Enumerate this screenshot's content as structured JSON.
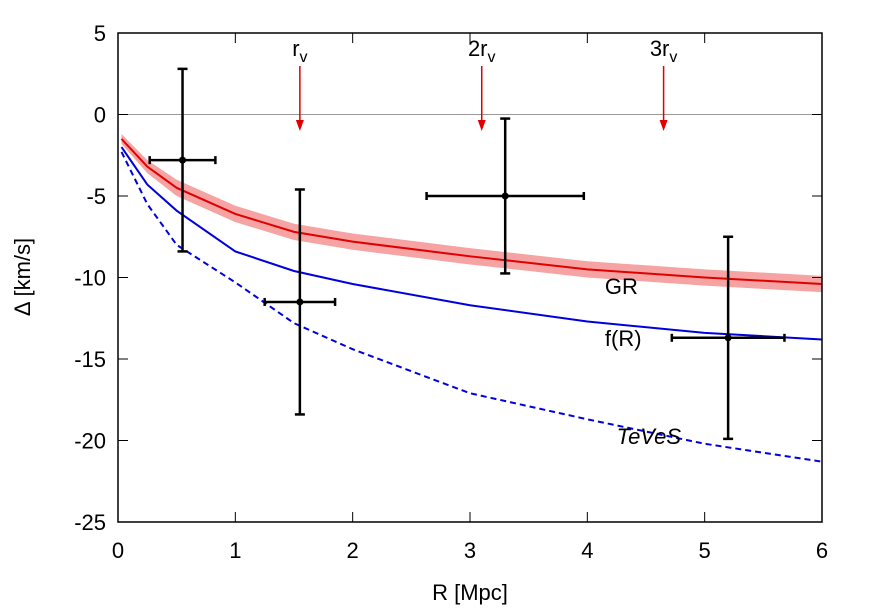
{
  "chart_data": {
    "type": "line",
    "xlabel": "R [Mpc]",
    "ylabel": "Δ [km/s]",
    "xlim": [
      0,
      6
    ],
    "xticks": [
      0,
      1,
      2,
      3,
      4,
      5,
      6
    ],
    "ylim": [
      -25,
      5
    ],
    "yticks": [
      -25,
      -20,
      -15,
      -10,
      -5,
      0,
      5
    ],
    "series": [
      {
        "name": "GR",
        "color": "#e00000",
        "band_color": "#f5a3a3",
        "dashed": false,
        "x": [
          0.03,
          0.25,
          0.5,
          1,
          1.5,
          2,
          3,
          4,
          5,
          6
        ],
        "values": [
          -1.5,
          -3.2,
          -4.5,
          -6.1,
          -7.2,
          -7.8,
          -8.7,
          -9.5,
          -10.0,
          -10.4
        ],
        "errors": [
          0.3,
          0.4,
          0.5,
          0.5,
          0.5,
          0.5,
          0.5,
          0.5,
          0.5,
          0.5
        ]
      },
      {
        "name": "f(R)",
        "color": "#0000dd",
        "dashed": false,
        "x": [
          0.03,
          0.25,
          0.5,
          1,
          1.5,
          2,
          3,
          4,
          5,
          6
        ],
        "values": [
          -2.0,
          -4.3,
          -5.9,
          -8.4,
          -9.6,
          -10.4,
          -11.7,
          -12.7,
          -13.4,
          -13.8
        ]
      },
      {
        "name": "TeVeS",
        "color": "#0000dd",
        "dashed": true,
        "x": [
          0.03,
          0.25,
          0.5,
          1,
          1.5,
          2,
          3,
          4,
          5,
          6
        ],
        "values": [
          -2.3,
          -5.5,
          -8.0,
          -10.3,
          -12.8,
          -14.4,
          -17.1,
          -18.7,
          -20.2,
          -21.3
        ]
      }
    ],
    "points": {
      "color": "#000000",
      "x": [
        0.55,
        1.55,
        3.3,
        5.2
      ],
      "values": [
        -2.8,
        -11.5,
        -5.0,
        -13.7
      ],
      "xerr": [
        0.28,
        0.3,
        0.67,
        0.48
      ],
      "yerr": [
        5.6,
        6.9,
        4.75,
        6.2
      ]
    },
    "markers": {
      "color": "#e00000",
      "x": [
        1.55,
        3.1,
        4.65
      ],
      "labels": [
        {
          "text": "r",
          "sub": "v"
        },
        {
          "text": "2r",
          "sub": "v"
        },
        {
          "text": "3r",
          "sub": "v"
        }
      ]
    }
  }
}
